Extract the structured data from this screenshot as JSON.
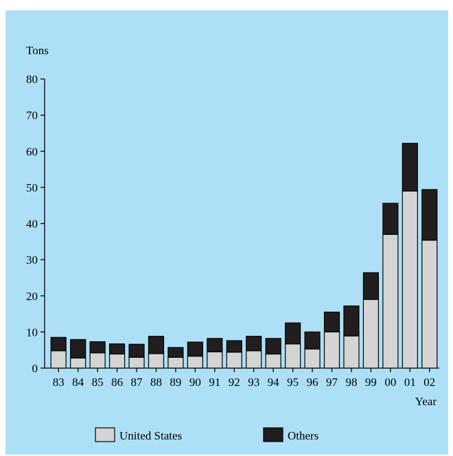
{
  "chart_data": {
    "type": "bar",
    "stacked": true,
    "categories": [
      "83",
      "84",
      "85",
      "86",
      "87",
      "88",
      "89",
      "90",
      "91",
      "92",
      "93",
      "94",
      "95",
      "96",
      "97",
      "98",
      "99",
      "00",
      "01",
      "02"
    ],
    "series": [
      {
        "name": "United States",
        "color": "#d4d4d4",
        "values": [
          4.8,
          2.8,
          4.2,
          3.9,
          3.0,
          4.0,
          3.0,
          3.3,
          4.5,
          4.4,
          4.8,
          3.9,
          6.7,
          5.3,
          10.0,
          8.9,
          19.0,
          37.0,
          49.0,
          35.4
        ]
      },
      {
        "name": "Others",
        "color": "#221e1f",
        "values": [
          3.7,
          5.1,
          3.1,
          2.8,
          3.6,
          4.8,
          2.7,
          3.9,
          3.7,
          3.2,
          4.0,
          4.3,
          5.8,
          4.7,
          5.5,
          8.3,
          7.4,
          8.6,
          13.2,
          14.0
        ]
      }
    ],
    "ylabel": "Tons",
    "xlabel": "Year",
    "ylim": [
      0,
      80
    ],
    "yticks": [
      0,
      10,
      20,
      30,
      40,
      50,
      60,
      70,
      80
    ],
    "grid": false,
    "legend_position": "bottom"
  },
  "colors": {
    "background": "#ade0f7",
    "axis": "#000000",
    "bar_border": "#000000"
  }
}
